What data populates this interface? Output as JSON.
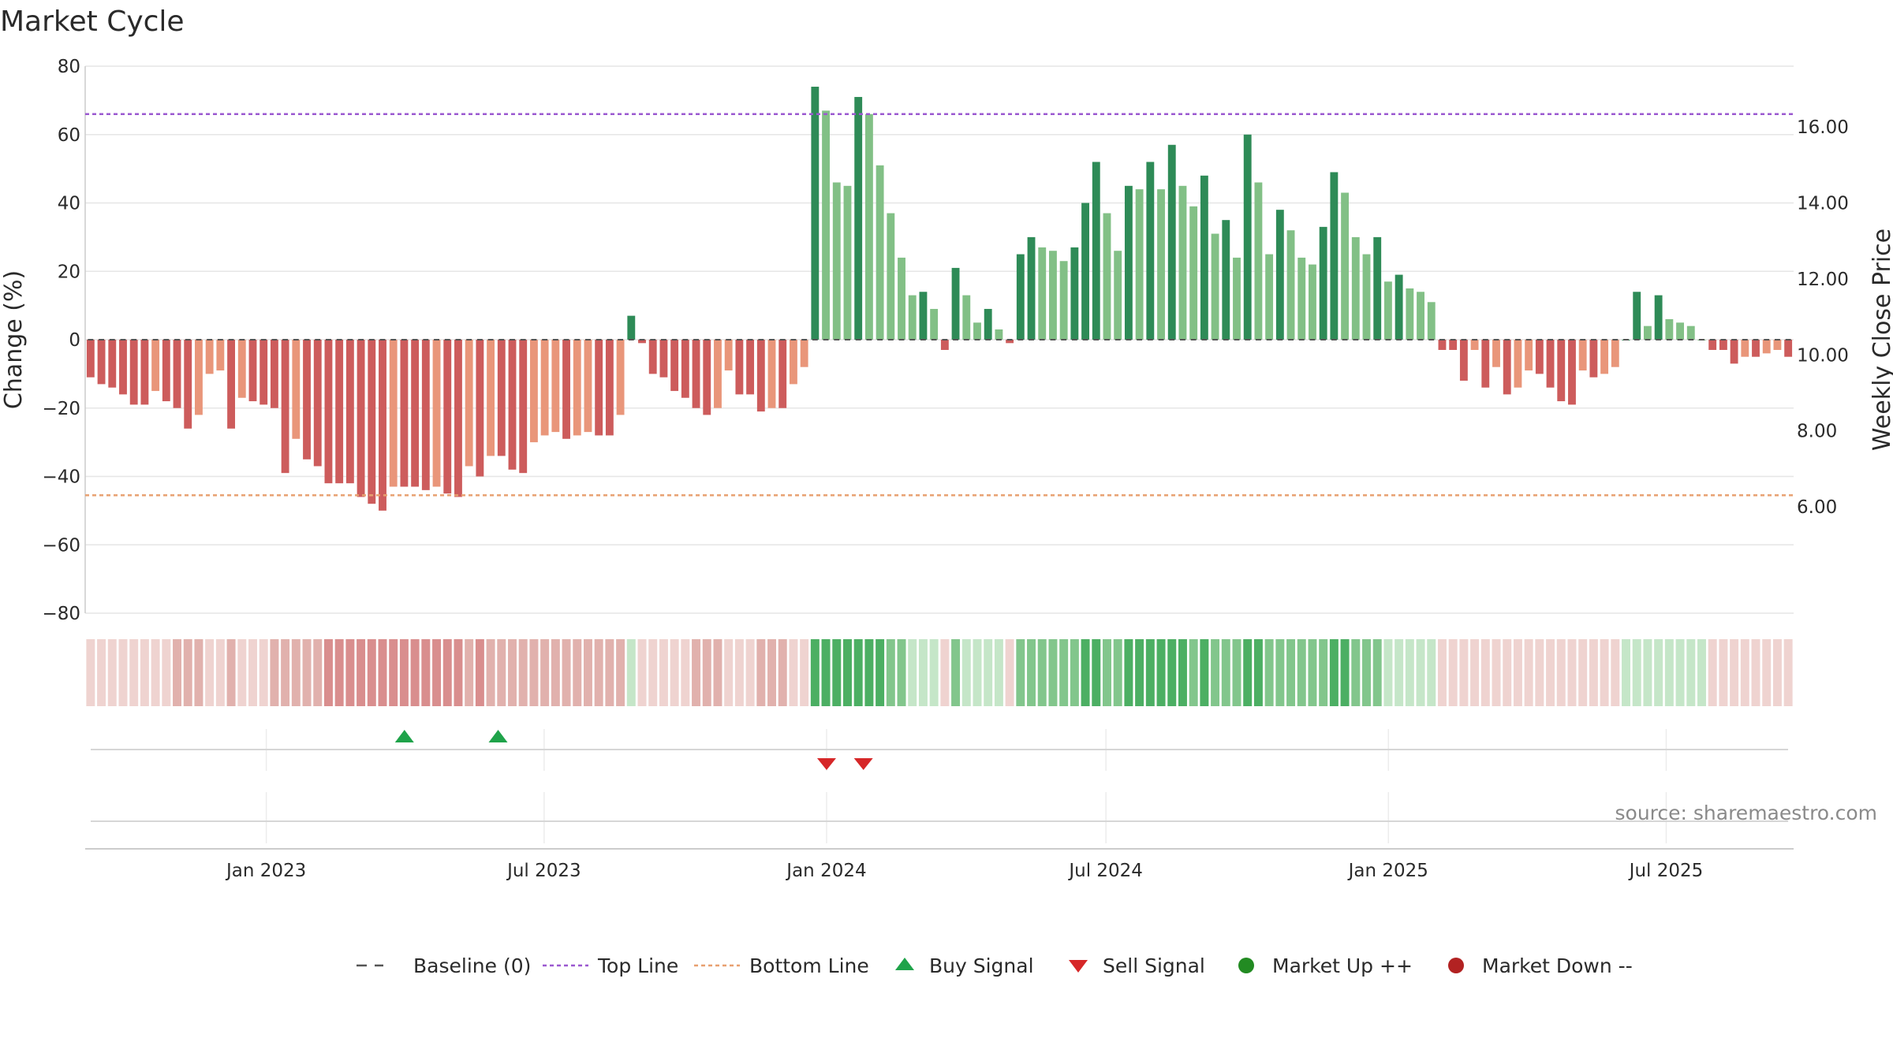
{
  "chart_data": {
    "type": "bar",
    "title": "Market Cycle",
    "ylabel": "Change (%)",
    "y2label": "Weekly Close Price",
    "ylim": [
      -80,
      80
    ],
    "y2lim": [
      3.2,
      17.6
    ],
    "yticks": [
      80,
      60,
      40,
      20,
      0,
      -20,
      -40,
      -60,
      -80
    ],
    "ytick_labels": [
      "80",
      "60",
      "40",
      "20",
      "0",
      "−20",
      "−40",
      "−60",
      "−80"
    ],
    "y2ticks": [
      16,
      14,
      12,
      10,
      8,
      6
    ],
    "y2tick_labels": [
      "16.00",
      "14.00",
      "12.00",
      "10.00",
      "8.00",
      "6.00"
    ],
    "x_start": "2022-09-05",
    "x_end": "2025-09-22",
    "xticks": [
      {
        "date": "2023-01-01",
        "label": "Jan 2023"
      },
      {
        "date": "2023-07-01",
        "label": "Jul 2023"
      },
      {
        "date": "2024-01-01",
        "label": "Jan 2024"
      },
      {
        "date": "2024-07-01",
        "label": "Jul 2024"
      },
      {
        "date": "2025-01-01",
        "label": "Jan 2025"
      },
      {
        "date": "2025-07-01",
        "label": "Jul 2025"
      }
    ],
    "top_line": 66,
    "bottom_line": -45.5,
    "grid": true,
    "values": [
      -11,
      -13,
      -14,
      -16,
      -19,
      -19,
      -15,
      -18,
      -20,
      -26,
      -22,
      -10,
      -9,
      -26,
      -17,
      -18,
      -19,
      -20,
      -39,
      -29,
      -35,
      -37,
      -42,
      -42,
      -42,
      -46,
      -48,
      -50,
      -43,
      -43,
      -43,
      -44,
      -43,
      -45,
      -46,
      -37,
      -40,
      -34,
      -34,
      -38,
      -39,
      -30,
      -28,
      -27,
      -29,
      -28,
      -27,
      -28,
      -28,
      -22,
      7,
      -1,
      -10,
      -11,
      -15,
      -17,
      -20,
      -22,
      -20,
      -9,
      -16,
      -16,
      -21,
      -20,
      -20,
      -13,
      -8,
      74,
      67,
      46,
      45,
      71,
      66,
      51,
      37,
      24,
      13,
      14,
      9,
      -3,
      21,
      13,
      5,
      9,
      3,
      -1,
      25,
      30,
      27,
      26,
      23,
      27,
      40,
      52,
      37,
      26,
      45,
      44,
      52,
      44,
      57,
      45,
      39,
      48,
      31,
      35,
      24,
      60,
      46,
      25,
      38,
      32,
      24,
      22,
      33,
      49,
      43,
      30,
      25,
      30,
      17,
      19,
      15,
      14,
      11,
      -3,
      -3,
      -12,
      -3,
      -14,
      -8,
      -16,
      -14,
      -9,
      -10,
      -14,
      -18,
      -19,
      -9,
      -11,
      -10,
      -8,
      0,
      14,
      4,
      13,
      6,
      5,
      4,
      0,
      -3,
      -3,
      -7,
      -5,
      -5,
      -4,
      -3,
      -5
    ],
    "buy_signals": [
      "2023-04-01",
      "2023-06-01"
    ],
    "sell_signals": [
      "2024-01-01",
      "2024-01-25"
    ],
    "legend": [
      {
        "label": "Baseline (0)",
        "marker": "dash",
        "color": "#555555"
      },
      {
        "label": "Top Line",
        "marker": "dotted",
        "color": "#9b59d0"
      },
      {
        "label": "Bottom Line",
        "marker": "dotted",
        "color": "#e8a070"
      },
      {
        "label": "Buy Signal",
        "marker": "triangle-up",
        "color": "#1fa34a"
      },
      {
        "label": "Sell Signal",
        "marker": "triangle-down",
        "color": "#d62728"
      },
      {
        "label": "Market Up ++",
        "marker": "circle",
        "color": "#228b22"
      },
      {
        "label": "Market Down --",
        "marker": "circle",
        "color": "#b22222"
      }
    ],
    "legend_position": "bottom-center",
    "colors": {
      "up_strong": "#2e8b57",
      "up_light": "#82c086",
      "down_strong": "#cd5c5c",
      "down_light": "#e9967a",
      "band_up_strong": "#4caf63",
      "band_up_light": "#c5e6c8",
      "band_down_strong": "#d98e8e",
      "band_down_light": "#efd3d0"
    }
  },
  "source_text": "source: sharemaestro.com"
}
